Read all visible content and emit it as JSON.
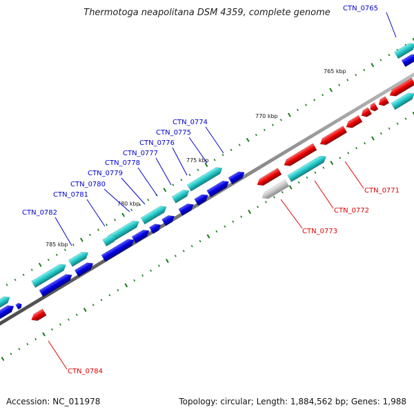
{
  "title": "Thermotoga neapolitana DSM 4359, complete genome",
  "footer": {
    "accession": "Accession: NC_011978",
    "summary": "Topology: circular; Length: 1,884,562 bp; Genes: 1,988"
  },
  "colors": {
    "forward_gene": "#0000ee",
    "forward_cds": "#22c4c4",
    "reverse_gene": "#ee0000",
    "reverse_cds_gray": "#c0c0c0",
    "backbone": "#777777",
    "tick": "#1a7a1a",
    "label_forward": "#0000cc",
    "label_reverse": "#dd0000"
  },
  "scale_labels": [
    "765 kbp",
    "770 kbp",
    "775 kbp",
    "780 kbp",
    "785 kbp"
  ],
  "gene_labels": {
    "forward": [
      "CTN_0765",
      "CTN_0774",
      "CTN_0775",
      "CTN_0776",
      "CTN_0777",
      "CTN_0778",
      "CTN_0779",
      "CTN_0780",
      "CTN_0781",
      "CTN_0782"
    ],
    "reverse": [
      "CTN_0771",
      "CTN_0772",
      "CTN_0773",
      "CTN_0784"
    ]
  }
}
